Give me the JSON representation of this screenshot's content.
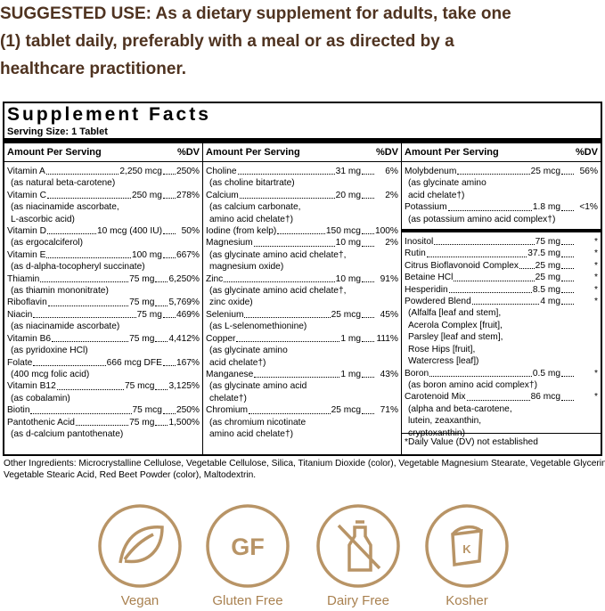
{
  "suggested_use": {
    "lines": [
      "SUGGESTED USE: As a dietary supplement for adults, take one",
      "(1) tablet daily, preferably with a meal or as directed by a",
      "healthcare practitioner."
    ]
  },
  "supplement_facts": {
    "title": "Supplement Facts",
    "serving_size": "Serving Size: 1 Tablet",
    "columns": [
      {
        "header_amount": "Amount Per Serving",
        "header_dv": "%DV",
        "sections": [
          [
            {
              "name": "Vitamin A",
              "amount": "2,250 mcg",
              "dv": "250%",
              "notes": [
                "(as natural beta-carotene)"
              ]
            },
            {
              "name": "Vitamin C",
              "amount": "250 mg",
              "dv": "278%",
              "notes": [
                "(as niacinamide ascorbate,",
                "L-ascorbic acid)"
              ]
            },
            {
              "name": "Vitamin D",
              "amount": "10 mcg (400 IU)",
              "dv": "50%",
              "notes": [
                "(as ergocalciferol)"
              ]
            },
            {
              "name": "Vitamin E",
              "amount": "100 mg",
              "dv": "667%",
              "notes": [
                "(as d-alpha-tocopheryl succinate)"
              ]
            },
            {
              "name": "Thiamin",
              "amount": "75 mg",
              "dv": "6,250%",
              "notes": [
                "(as thiamin mononitrate)"
              ]
            },
            {
              "name": "Riboflavin",
              "amount": "75 mg",
              "dv": "5,769%",
              "notes": []
            },
            {
              "name": "Niacin",
              "amount": "75 mg",
              "dv": "469%",
              "notes": [
                "(as niacinamide ascorbate)"
              ]
            },
            {
              "name": "Vitamin B6",
              "amount": "75 mg",
              "dv": "4,412%",
              "notes": [
                "(as pyridoxine HCl)"
              ]
            },
            {
              "name": "Folate",
              "amount": "666 mcg DFE",
              "dv": "167%",
              "notes": [
                "(400 mcg folic acid)"
              ]
            },
            {
              "name": "Vitamin B12",
              "amount": "75 mcg",
              "dv": "3,125%",
              "notes": [
                "(as cobalamin)"
              ]
            },
            {
              "name": "Biotin",
              "amount": "75 mcg",
              "dv": "250%",
              "notes": []
            },
            {
              "name": "Pantothenic Acid",
              "amount": "75 mg",
              "dv": "1,500%",
              "notes": [
                "(as d-calcium pantothenate)"
              ]
            }
          ]
        ]
      },
      {
        "header_amount": "Amount Per Serving",
        "header_dv": "%DV",
        "sections": [
          [
            {
              "name": "Choline",
              "amount": "31 mg",
              "dv": "6%",
              "notes": [
                "(as choline bitartrate)"
              ]
            },
            {
              "name": "Calcium",
              "amount": "20 mg",
              "dv": "2%",
              "notes": [
                "(as calcium carbonate,",
                "amino acid chelate†)"
              ]
            },
            {
              "name": "Iodine (from kelp)",
              "amount": "150 mcg",
              "dv": "100%",
              "notes": []
            },
            {
              "name": "Magnesium",
              "amount": "10 mg",
              "dv": "2%",
              "notes": [
                "(as glycinate amino acid chelate†,",
                "magnesium oxide)"
              ]
            },
            {
              "name": "Zinc",
              "amount": "10 mg",
              "dv": "91%",
              "notes": [
                "(as glycinate amino acid chelate†,",
                "zinc oxide)"
              ]
            },
            {
              "name": "Selenium",
              "amount": "25 mcg",
              "dv": "45%",
              "notes": [
                "(as L-selenomethionine)"
              ]
            },
            {
              "name": "Copper",
              "amount": "1 mg",
              "dv": "111%",
              "notes": [
                "(as glycinate amino",
                "acid chelate†)"
              ]
            },
            {
              "name": "Manganese",
              "amount": "1 mg",
              "dv": "43%",
              "notes": [
                "(as glycinate amino acid",
                "chelate†)"
              ]
            },
            {
              "name": "Chromium",
              "amount": "25 mcg",
              "dv": "71%",
              "notes": [
                "(as chromium nicotinate",
                "amino acid chelate†)"
              ]
            }
          ]
        ]
      },
      {
        "header_amount": "Amount Per Serving",
        "header_dv": "%DV",
        "sections": [
          [
            {
              "name": "Molybdenum",
              "amount": "25 mcg",
              "dv": "56%",
              "notes": [
                "(as glycinate amino",
                "acid chelate†)"
              ]
            },
            {
              "name": "Potassium",
              "amount": "1.8 mg",
              "dv": "<1%",
              "notes": [
                "(as potassium amino acid complex†)"
              ]
            }
          ],
          [
            {
              "name": "Inositol",
              "amount": "75 mg",
              "dv": "*",
              "notes": []
            },
            {
              "name": "Rutin",
              "amount": "37.5 mg",
              "dv": "*",
              "notes": []
            },
            {
              "name": "Citrus Bioflavonoid Complex",
              "amount": "25 mg",
              "dv": "*",
              "notes": []
            },
            {
              "name": "Betaine HCl",
              "amount": "25 mg",
              "dv": "*",
              "notes": []
            },
            {
              "name": "Hesperidin",
              "amount": "8.5 mg",
              "dv": "*",
              "notes": []
            },
            {
              "name": "Powdered Blend",
              "amount": "4 mg",
              "dv": "*",
              "notes": [
                "(Alfalfa [leaf and stem],",
                "Acerola Complex [fruit],",
                "Parsley [leaf and stem],",
                "Rose Hips [fruit],",
                "Watercress [leaf])"
              ]
            },
            {
              "name": "Boron",
              "amount": "0.5 mg",
              "dv": "*",
              "notes": [
                "(as boron amino acid complex†)"
              ]
            },
            {
              "name": "Carotenoid Mix",
              "amount": "86 mcg",
              "dv": "*",
              "notes": [
                "(alpha and beta-carotene,",
                "lutein, zeaxanthin,",
                "cryptoxanthin)"
              ]
            }
          ]
        ],
        "footnote": "*Daily Value (DV) not established"
      }
    ]
  },
  "other_ingredients": [
    "Other Ingredients: Microcrystalline Cellulose, Vegetable Cellulose, Silica, Titanium Dioxide (color), Vegetable Magnesium Stearate, Vegetable Glycerin,",
    "Vegetable Stearic Acid, Red Beet Powder (color), Maltodextrin."
  ],
  "badges": [
    {
      "label": "Vegan"
    },
    {
      "label": "Gluten Free",
      "mark": "GF"
    },
    {
      "label": "Dairy Free"
    },
    {
      "label": "Kosher",
      "mark": "K"
    }
  ]
}
